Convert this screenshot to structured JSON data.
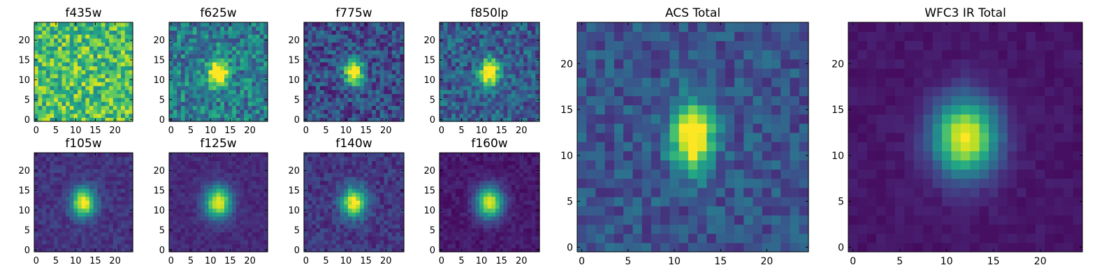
{
  "chart_data": [
    {
      "type": "heatmap",
      "title": "f435w",
      "x_ticks": [
        0,
        5,
        10,
        15,
        20
      ],
      "y_ticks": [
        0,
        5,
        10,
        15,
        20
      ],
      "xlim": [
        0,
        24
      ],
      "ylim": [
        0,
        24
      ],
      "grid": false,
      "source_profile": {
        "center_x": 12,
        "center_y": 12,
        "sigma_x": 1.6,
        "sigma_y": 2.4,
        "peak": 0.05,
        "background": 0.7,
        "noise": 0.25
      }
    },
    {
      "type": "heatmap",
      "title": "f625w",
      "x_ticks": [
        0,
        5,
        10,
        15,
        20
      ],
      "y_ticks": [
        0,
        5,
        10,
        15,
        20
      ],
      "xlim": [
        0,
        24
      ],
      "ylim": [
        0,
        24
      ],
      "grid": false,
      "source_profile": {
        "center_x": 12,
        "center_y": 12,
        "sigma_x": 1.6,
        "sigma_y": 2.2,
        "peak": 0.9,
        "background": 0.42,
        "noise": 0.22
      }
    },
    {
      "type": "heatmap",
      "title": "f775w",
      "x_ticks": [
        0,
        5,
        10,
        15,
        20
      ],
      "y_ticks": [
        0,
        5,
        10,
        15,
        20
      ],
      "xlim": [
        0,
        24
      ],
      "ylim": [
        0,
        24
      ],
      "grid": false,
      "source_profile": {
        "center_x": 12,
        "center_y": 12,
        "sigma_x": 1.5,
        "sigma_y": 2.2,
        "peak": 1.0,
        "background": 0.24,
        "noise": 0.18
      }
    },
    {
      "type": "heatmap",
      "title": "f850lp",
      "x_ticks": [
        0,
        5,
        10,
        15,
        20
      ],
      "y_ticks": [
        0,
        5,
        10,
        15,
        20
      ],
      "xlim": [
        0,
        24
      ],
      "ylim": [
        0,
        24
      ],
      "grid": false,
      "source_profile": {
        "center_x": 12,
        "center_y": 12,
        "sigma_x": 1.6,
        "sigma_y": 2.2,
        "peak": 0.95,
        "background": 0.3,
        "noise": 0.18
      }
    },
    {
      "type": "heatmap",
      "title": "f105w",
      "x_ticks": [
        0,
        5,
        10,
        15,
        20
      ],
      "y_ticks": [
        0,
        5,
        10,
        15,
        20
      ],
      "xlim": [
        0,
        24
      ],
      "ylim": [
        0,
        24
      ],
      "grid": false,
      "source_profile": {
        "center_x": 12,
        "center_y": 12,
        "sigma_x": 2.1,
        "sigma_y": 2.6,
        "peak": 0.85,
        "background": 0.15,
        "noise": 0.07
      }
    },
    {
      "type": "heatmap",
      "title": "f125w",
      "x_ticks": [
        0,
        5,
        10,
        15,
        20
      ],
      "y_ticks": [
        0,
        5,
        10,
        15,
        20
      ],
      "xlim": [
        0,
        24
      ],
      "ylim": [
        0,
        24
      ],
      "grid": false,
      "source_profile": {
        "center_x": 12,
        "center_y": 12,
        "sigma_x": 2.3,
        "sigma_y": 2.8,
        "peak": 0.88,
        "background": 0.12,
        "noise": 0.05
      }
    },
    {
      "type": "heatmap",
      "title": "f140w",
      "x_ticks": [
        0,
        5,
        10,
        15,
        20
      ],
      "y_ticks": [
        0,
        5,
        10,
        15,
        20
      ],
      "xlim": [
        0,
        24
      ],
      "ylim": [
        0,
        24
      ],
      "grid": false,
      "source_profile": {
        "center_x": 12,
        "center_y": 12,
        "sigma_x": 2.1,
        "sigma_y": 2.6,
        "peak": 0.88,
        "background": 0.16,
        "noise": 0.09
      }
    },
    {
      "type": "heatmap",
      "title": "f160w",
      "x_ticks": [
        0,
        5,
        10,
        15,
        20
      ],
      "y_ticks": [
        0,
        5,
        10,
        15,
        20
      ],
      "xlim": [
        0,
        24
      ],
      "ylim": [
        0,
        24
      ],
      "grid": false,
      "source_profile": {
        "center_x": 12,
        "center_y": 12,
        "sigma_x": 2.3,
        "sigma_y": 2.8,
        "peak": 0.9,
        "background": 0.07,
        "noise": 0.05
      }
    },
    {
      "type": "heatmap",
      "title": "ACS Total",
      "x_ticks": [
        0,
        5,
        10,
        15,
        20
      ],
      "y_ticks": [
        0,
        5,
        10,
        15,
        20
      ],
      "xlim": [
        0,
        24
      ],
      "ylim": [
        0,
        24
      ],
      "grid": false,
      "source_profile": {
        "center_x": 12,
        "center_y": 12,
        "sigma_x": 1.5,
        "sigma_y": 2.4,
        "peak": 1.0,
        "background": 0.26,
        "noise": 0.13
      }
    },
    {
      "type": "heatmap",
      "title": "WFC3 IR Total",
      "x_ticks": [
        0,
        5,
        10,
        15,
        20
      ],
      "y_ticks": [
        0,
        5,
        10,
        15,
        20
      ],
      "xlim": [
        0,
        24
      ],
      "ylim": [
        0,
        24
      ],
      "grid": false,
      "source_profile": {
        "center_x": 12,
        "center_y": 12,
        "sigma_x": 2.4,
        "sigma_y": 2.9,
        "peak": 0.95,
        "background": 0.06,
        "noise": 0.03
      }
    }
  ],
  "colormap": "viridis"
}
